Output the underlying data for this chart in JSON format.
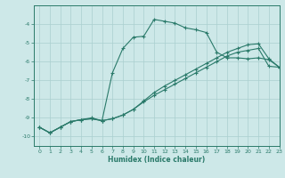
{
  "xlabel": "Humidex (Indice chaleur)",
  "ylabel": "",
  "xlim": [
    -0.5,
    23
  ],
  "ylim": [
    -10.5,
    -3.0
  ],
  "yticks": [
    -10,
    -9,
    -8,
    -7,
    -6,
    -5,
    -4
  ],
  "xticks": [
    0,
    1,
    2,
    3,
    4,
    5,
    6,
    7,
    8,
    9,
    10,
    11,
    12,
    13,
    14,
    15,
    16,
    17,
    18,
    19,
    20,
    21,
    22,
    23
  ],
  "bg_color": "#cde8e8",
  "grid_color": "#aacfcf",
  "line_color": "#2a7a6a",
  "line1_x": [
    0,
    1,
    2,
    3,
    4,
    5,
    6,
    7,
    8,
    9,
    10,
    11,
    12,
    13,
    14,
    15,
    16,
    17,
    18,
    19,
    20,
    21,
    22,
    23
  ],
  "line1_y": [
    -9.5,
    -9.8,
    -9.5,
    -9.2,
    -9.1,
    -9.0,
    -9.15,
    -6.6,
    -5.3,
    -4.7,
    -4.65,
    -3.75,
    -3.85,
    -3.95,
    -4.2,
    -4.3,
    -4.45,
    -5.5,
    -5.8,
    -5.8,
    -5.85,
    -5.8,
    -5.9,
    -6.3
  ],
  "line2_x": [
    0,
    1,
    2,
    3,
    4,
    5,
    6,
    7,
    8,
    9,
    10,
    11,
    12,
    13,
    14,
    15,
    16,
    17,
    18,
    19,
    20,
    21,
    22,
    23
  ],
  "line2_y": [
    -9.5,
    -9.8,
    -9.5,
    -9.2,
    -9.1,
    -9.05,
    -9.15,
    -9.05,
    -8.85,
    -8.55,
    -8.1,
    -7.65,
    -7.3,
    -7.0,
    -6.7,
    -6.4,
    -6.1,
    -5.8,
    -5.5,
    -5.3,
    -5.1,
    -5.05,
    -5.85,
    -6.3
  ],
  "line3_x": [
    0,
    1,
    2,
    3,
    4,
    5,
    6,
    7,
    8,
    9,
    10,
    11,
    12,
    13,
    14,
    15,
    16,
    17,
    18,
    19,
    20,
    21,
    22,
    23
  ],
  "line3_y": [
    -9.5,
    -9.8,
    -9.5,
    -9.2,
    -9.1,
    -9.05,
    -9.15,
    -9.05,
    -8.85,
    -8.55,
    -8.15,
    -7.8,
    -7.5,
    -7.2,
    -6.9,
    -6.6,
    -6.3,
    -6.0,
    -5.7,
    -5.5,
    -5.4,
    -5.3,
    -6.25,
    -6.3
  ]
}
